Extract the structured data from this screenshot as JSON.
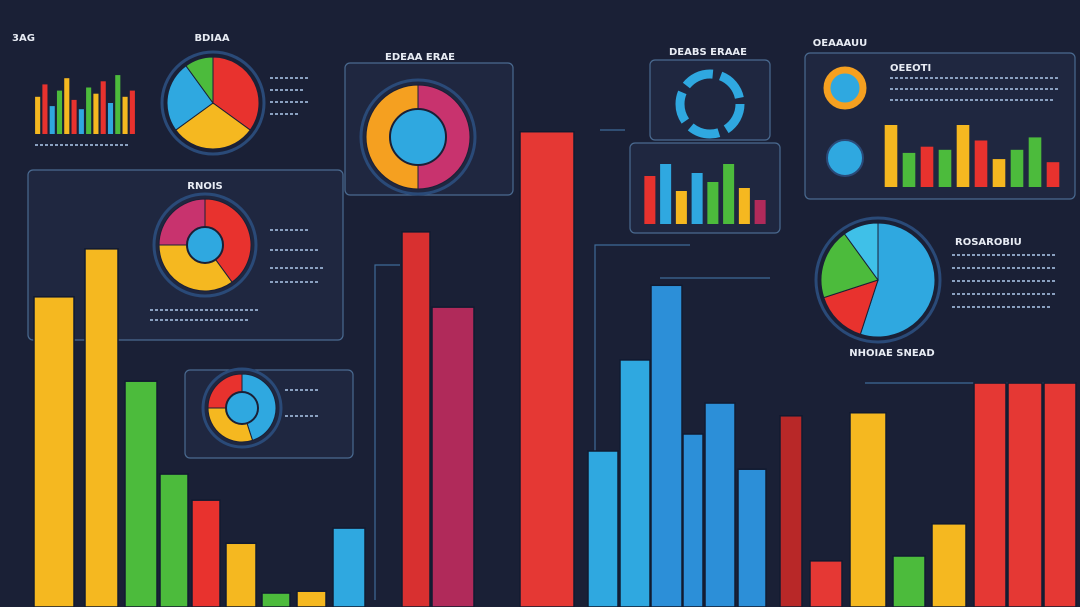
{
  "labels": {
    "top_left": "3AG",
    "top_pie": "BDIAA",
    "middle_donut": "EDEAA ERAE",
    "ring_chart": "DEABS ERAAE",
    "overview": "OEAAAUU",
    "rings": "RNOIS",
    "right_pie": "ROSAROBIU",
    "right_note": "OEEOTI",
    "right_pie_caption": "NHOIAE SNEAD"
  },
  "main_bars": {
    "ylim": [
      0,
      100
    ],
    "bars": [
      {
        "color": "#f5b820",
        "value": 51.1
      },
      {
        "color": "#f5b820",
        "value": 59.0
      },
      {
        "color": "#4cbb3c",
        "value": 37.2
      },
      {
        "color": "#4cbb3c",
        "value": 21.9
      },
      {
        "color": "#e8322e",
        "value": 17.6
      },
      {
        "color": "#f5b820",
        "value": 10.5
      },
      {
        "color": "#4cbb3c",
        "value": 2.3
      },
      {
        "color": "#f5b820",
        "value": 2.6
      },
      {
        "color": "#2fa8e0",
        "value": 13.0
      },
      {
        "color": "#d83030",
        "value": 61.8
      },
      {
        "color": "#b02a5a",
        "value": 49.4
      },
      {
        "color": "#e53834",
        "value": 78.3
      },
      {
        "color": "#2fa8e0",
        "value": 25.7
      },
      {
        "color": "#2fa8e0",
        "value": 40.7
      },
      {
        "color": "#2c8fd8",
        "value": 53.0
      },
      {
        "color": "#2c8fd8",
        "value": 28.5
      },
      {
        "color": "#2c8fd8",
        "value": 33.6
      },
      {
        "color": "#2c8fd8",
        "value": 22.7
      },
      {
        "color": "#b82828",
        "value": 31.5
      },
      {
        "color": "#e53834",
        "value": 7.6
      },
      {
        "color": "#f5b820",
        "value": 32.0
      },
      {
        "color": "#4cbb3c",
        "value": 8.4
      },
      {
        "color": "#f5b820",
        "value": 13.7
      },
      {
        "color": "#e53834",
        "value": 36.9
      },
      {
        "color": "#e53834",
        "value": 36.9
      },
      {
        "color": "#e53834",
        "value": 36.9
      }
    ]
  },
  "mini_bars": [
    {
      "ylim": [
        0,
        100
      ],
      "values": [
        60,
        80,
        45,
        70,
        90,
        55,
        40,
        75,
        65,
        85,
        50,
        95,
        60,
        70
      ],
      "colors": [
        "#f5b820",
        "#e8322e",
        "#2fa8e0",
        "#4cbb3c",
        "#f5b820",
        "#e8322e",
        "#2fa8e0",
        "#4cbb3c",
        "#f5b820",
        "#e8322e",
        "#2fa8e0",
        "#4cbb3c",
        "#f5b820",
        "#e8322e"
      ]
    },
    {
      "ylim": [
        0,
        100
      ],
      "values": [
        100,
        55,
        65,
        60,
        100,
        75,
        45,
        60,
        80,
        40
      ],
      "colors": [
        "#f5b820",
        "#4cbb3c",
        "#e8322e",
        "#4cbb3c",
        "#f5b820",
        "#e8322e",
        "#f5b820",
        "#4cbb3c",
        "#4cbb3c",
        "#e8322e"
      ]
    },
    {
      "ylim": [
        0,
        100
      ],
      "values": [
        80,
        100,
        55,
        85,
        70,
        100,
        60,
        40
      ],
      "colors": [
        "#e8322e",
        "#2fa8e0",
        "#f5b820",
        "#2fa8e0",
        "#4cbb3c",
        "#4cbb3c",
        "#f5b820",
        "#b02a5a"
      ]
    }
  ],
  "pies": [
    {
      "values": [
        35,
        30,
        25,
        10
      ],
      "colors": [
        "#e8322e",
        "#f5b820",
        "#2fa8e0",
        "#4cbb3c"
      ]
    },
    {
      "values": [
        50,
        50
      ],
      "colors": [
        "#c8336e",
        "#f5a020"
      ]
    },
    {
      "values": [
        55,
        15,
        20,
        10
      ],
      "colors": [
        "#2fa8e0",
        "#e8322e",
        "#4cbb3c",
        "#3fc0e8"
      ]
    },
    {
      "values": [
        40,
        35,
        25
      ],
      "colors": [
        "#e8322e",
        "#f5b820",
        "#c8336e"
      ]
    },
    {
      "values": [
        45,
        30,
        25
      ],
      "colors": [
        "#2fa8e0",
        "#f5b820",
        "#e8322e"
      ]
    }
  ]
}
